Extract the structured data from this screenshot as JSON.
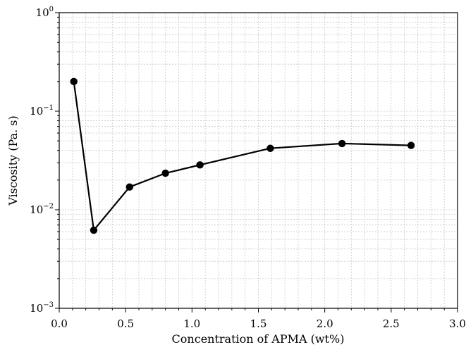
{
  "chart_data": {
    "type": "line",
    "title": "",
    "xlabel": "Concentration of APMA (wt%)",
    "ylabel": "Viscosity (Pa. s)",
    "xlim": [
      0.0,
      3.0
    ],
    "ylim": [
      0.001,
      1
    ],
    "yscale": "log",
    "grid": true,
    "x_ticks": [
      "0.0",
      "0.5",
      "1.0",
      "1.5",
      "2.0",
      "2.5",
      "3.0"
    ],
    "y_ticks": [
      {
        "base": "10",
        "exp": "0",
        "value": 1
      },
      {
        "base": "10",
        "exp": "−1",
        "value": 0.1
      },
      {
        "base": "10",
        "exp": "−2",
        "value": 0.01
      },
      {
        "base": "10",
        "exp": "−3",
        "value": 0.001
      }
    ],
    "series": [
      {
        "x": [
          0.11,
          0.26,
          0.53,
          0.8,
          1.06,
          1.59,
          2.13,
          2.65
        ],
        "y": [
          0.2,
          0.0062,
          0.017,
          0.0235,
          0.0285,
          0.042,
          0.047,
          0.045
        ],
        "color": "#000000",
        "marker": "circle"
      }
    ]
  }
}
